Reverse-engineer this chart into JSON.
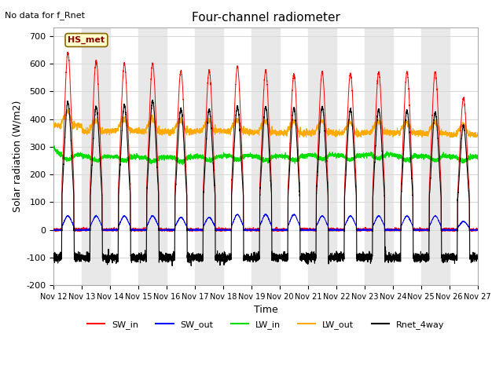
{
  "title": "Four-channel radiometer",
  "top_left_text": "No data for f_Rnet",
  "xlabel": "Time",
  "ylabel": "Solar radiation (W/m2)",
  "ylim": [
    -200,
    730
  ],
  "yticks": [
    -200,
    -100,
    0,
    100,
    200,
    300,
    400,
    500,
    600,
    700
  ],
  "n_days": 15,
  "x_tick_labels": [
    "Nov 12",
    "Nov 13",
    "Nov 14",
    "Nov 15",
    "Nov 16",
    "Nov 17",
    "Nov 18",
    "Nov 19",
    "Nov 20",
    "Nov 21",
    "Nov 22",
    "Nov 23",
    "Nov 24",
    "Nov 25",
    "Nov 26",
    "Nov 27"
  ],
  "annotation_box": "HS_met",
  "colors": {
    "SW_in": "#ff0000",
    "SW_out": "#0000ff",
    "LW_in": "#00dd00",
    "LW_out": "#ffaa00",
    "Rnet_4way": "#000000"
  },
  "bg_color": "#ffffff",
  "plot_bg_color": "#ffffff",
  "SW_in_peaks": [
    640,
    610,
    600,
    600,
    575,
    575,
    590,
    575,
    560,
    570,
    565,
    570,
    570,
    570,
    475
  ],
  "SW_out_peaks": [
    50,
    50,
    50,
    50,
    45,
    45,
    55,
    55,
    55,
    50,
    50,
    50,
    50,
    50,
    30
  ],
  "LW_in_base": [
    270,
    265,
    265,
    262,
    262,
    265,
    268,
    265,
    266,
    270,
    268,
    272,
    267,
    266,
    264
  ],
  "LW_out_base": [
    375,
    355,
    358,
    356,
    355,
    357,
    356,
    352,
    350,
    352,
    348,
    352,
    350,
    347,
    343
  ],
  "LW_out_peak_bump": [
    60,
    50,
    55,
    55,
    50,
    50,
    50,
    50,
    50,
    50,
    50,
    50,
    50,
    50,
    45
  ],
  "Rnet_peaks": [
    460,
    445,
    450,
    465,
    435,
    435,
    445,
    445,
    440,
    445,
    435,
    435,
    430,
    425,
    375
  ],
  "Rnet_night": -100,
  "gray_band_color": "#e8e8e8",
  "grid_color": "#d8d8d8"
}
